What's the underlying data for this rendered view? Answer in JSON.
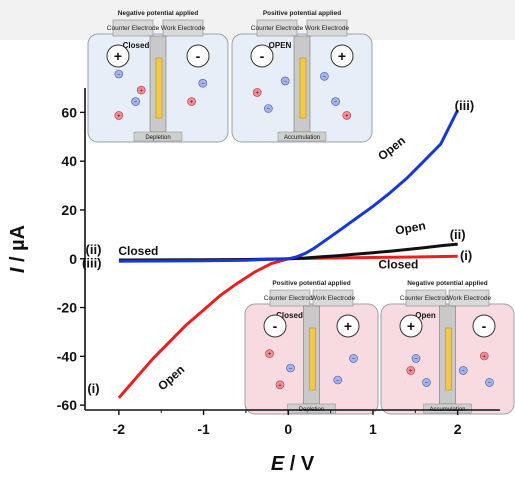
{
  "chart_data": {
    "type": "line",
    "xlabel_symbol": "E",
    "xlabel_unit": "V",
    "ylabel_symbol": "I",
    "ylabel_unit": "µA",
    "xlim": [
      -2.4,
      2.5
    ],
    "ylim": [
      -62,
      70
    ],
    "x_ticks": [
      -2,
      -1,
      0,
      1,
      2
    ],
    "y_ticks": [
      -60,
      -40,
      -20,
      0,
      20,
      40,
      60
    ],
    "series": [
      {
        "name": "(i)",
        "color": "#e8201f",
        "points": [
          [
            -2.0,
            -57
          ],
          [
            -1.8,
            -49
          ],
          [
            -1.6,
            -41
          ],
          [
            -1.4,
            -34
          ],
          [
            -1.2,
            -27
          ],
          [
            -1.0,
            -21
          ],
          [
            -0.8,
            -15
          ],
          [
            -0.6,
            -10
          ],
          [
            -0.4,
            -5.5
          ],
          [
            -0.2,
            -2
          ],
          [
            0.0,
            0
          ],
          [
            0.5,
            0.3
          ],
          [
            1.0,
            0.5
          ],
          [
            1.5,
            0.7
          ],
          [
            2.0,
            1
          ]
        ]
      },
      {
        "name": "(ii)",
        "color": "#111111",
        "points": [
          [
            -2.0,
            -0.5
          ],
          [
            -1.0,
            -0.4
          ],
          [
            -0.5,
            -0.3
          ],
          [
            0.0,
            0
          ],
          [
            0.2,
            0.3
          ],
          [
            0.4,
            0.8
          ],
          [
            0.6,
            1.3
          ],
          [
            0.8,
            1.9
          ],
          [
            1.0,
            2.5
          ],
          [
            1.2,
            3.1
          ],
          [
            1.4,
            3.8
          ],
          [
            1.6,
            4.5
          ],
          [
            1.8,
            5.3
          ],
          [
            2.0,
            6
          ]
        ]
      },
      {
        "name": "(iii)",
        "color": "#1538d6",
        "points": [
          [
            -2.0,
            -1
          ],
          [
            -1.5,
            -0.9
          ],
          [
            -1.0,
            -0.8
          ],
          [
            -0.5,
            -0.6
          ],
          [
            0.0,
            0
          ],
          [
            0.1,
            0.8
          ],
          [
            0.2,
            2.2
          ],
          [
            0.3,
            4.2
          ],
          [
            0.4,
            6.6
          ],
          [
            0.6,
            11.5
          ],
          [
            0.8,
            16.5
          ],
          [
            1.0,
            21.5
          ],
          [
            1.2,
            27
          ],
          [
            1.4,
            33
          ],
          [
            1.6,
            40
          ],
          [
            1.8,
            47
          ],
          [
            2.0,
            61
          ]
        ]
      }
    ],
    "annotations": [
      {
        "text": "Open",
        "x": 1.25,
        "y": 44,
        "rotate": -38
      },
      {
        "text": "Open",
        "x": 1.45,
        "y": 11,
        "rotate": -10
      },
      {
        "text": "Closed",
        "x": 1.3,
        "y": -4,
        "rotate": 0
      },
      {
        "text": "Closed",
        "x": -1.77,
        "y": 1.5,
        "rotate": 0
      },
      {
        "text": "Open",
        "x": -1.35,
        "y": -50,
        "rotate": -42
      },
      {
        "text": "(iii)",
        "x": 2.08,
        "y": 61,
        "rotate": 0
      },
      {
        "text": "(ii)",
        "x": 2.0,
        "y": 8,
        "rotate": 0
      },
      {
        "text": "(i)",
        "x": 2.1,
        "y": -0.5,
        "rotate": 0
      },
      {
        "text": "(ii)",
        "x": -2.3,
        "y": 2,
        "rotate": 0
      },
      {
        "text": "(iii)",
        "x": -2.32,
        "y": -3.5,
        "rotate": 0
      },
      {
        "text": "(i)",
        "x": -2.3,
        "y": -55,
        "rotate": 0
      }
    ]
  },
  "insets": [
    {
      "id": "top-left",
      "potential": "Negative potential applied",
      "left": "Counter Electrode",
      "right": "Work Electrode",
      "state": "Closed",
      "left_sign": "+",
      "right_sign": "-",
      "footer": "Depletion",
      "bg": "#e8eef8"
    },
    {
      "id": "top-right",
      "potential": "Positive potential applied",
      "left": "Counter Electrode",
      "right": "Work Electrode",
      "state": "OPEN",
      "left_sign": "-",
      "right_sign": "+",
      "footer": "Accumulation",
      "bg": "#e8eef8"
    },
    {
      "id": "bottom-left",
      "potential": "Positive potential applied",
      "left": "Counter Electrode",
      "right": "Work Electrode",
      "state": "Closed",
      "left_sign": "-",
      "right_sign": "+",
      "footer": "Depletion",
      "bg": "#f8dbe0"
    },
    {
      "id": "bottom-right",
      "potential": "Negative potential applied",
      "left": "Counter Electrode",
      "right": "Work Electrode",
      "state": "Open",
      "left_sign": "+",
      "right_sign": "-",
      "footer": "Accumulation",
      "bg": "#f8dbe0"
    }
  ]
}
